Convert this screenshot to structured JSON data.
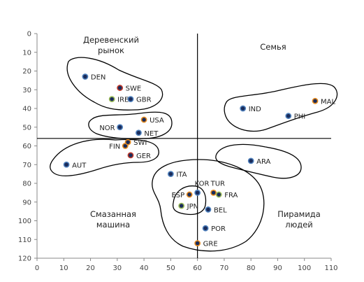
{
  "chart_data": {
    "type": "scatter",
    "title": "",
    "xlabel": "",
    "ylabel": "",
    "xlim": [
      0,
      110
    ],
    "ylim": [
      0,
      120
    ],
    "y_inverted": true,
    "x_ticks": [
      0,
      10,
      20,
      30,
      40,
      50,
      60,
      70,
      80,
      90,
      100,
      110
    ],
    "y_ticks": [
      0,
      10,
      20,
      30,
      40,
      50,
      60,
      70,
      80,
      90,
      100,
      110,
      120
    ],
    "grid": false,
    "reference_lines": {
      "x": 60,
      "y": 56
    },
    "quadrant_labels": {
      "top_left": [
        "Деревенский",
        "рынок"
      ],
      "top_right": [
        "Семья"
      ],
      "bottom_left": [
        "Смазанная",
        "машина"
      ],
      "bottom_right": [
        "Пирамида",
        "людей"
      ]
    },
    "colors": {
      "dot_fill": "#1a2c5b",
      "dot_rim_orange": "#e58a1f",
      "dot_rim_red": "#c0392b",
      "dot_rim_green": "#9bbb59",
      "dot_rim_blue": "#4f81bd",
      "axis": "#888888",
      "cluster_outline": "#000000"
    },
    "points": [
      {
        "label": "DEN",
        "x": 18,
        "y": 23,
        "rim": "blue"
      },
      {
        "label": "SWE",
        "x": 31,
        "y": 29,
        "rim": "red"
      },
      {
        "label": "IRE",
        "x": 28,
        "y": 35,
        "rim": "green"
      },
      {
        "label": "GBR",
        "x": 35,
        "y": 35,
        "rim": "blue"
      },
      {
        "label": "NOR",
        "x": 31,
        "y": 50,
        "rim": "blue"
      },
      {
        "label": "USA",
        "x": 40,
        "y": 46,
        "rim": "orange"
      },
      {
        "label": "NET",
        "x": 38,
        "y": 53,
        "rim": "blue"
      },
      {
        "label": "FIN",
        "x": 33,
        "y": 60,
        "rim": "orange"
      },
      {
        "label": "SWI",
        "x": 34,
        "y": 58,
        "rim": "orange"
      },
      {
        "label": "GER",
        "x": 35,
        "y": 65,
        "rim": "red"
      },
      {
        "label": "AUT",
        "x": 11,
        "y": 70,
        "rim": "blue"
      },
      {
        "label": "MAL",
        "x": 104,
        "y": 36,
        "rim": "orange"
      },
      {
        "label": "IND",
        "x": 77,
        "y": 40,
        "rim": "blue"
      },
      {
        "label": "PHI",
        "x": 94,
        "y": 44,
        "rim": "blue"
      },
      {
        "label": "ARA",
        "x": 80,
        "y": 68,
        "rim": "blue"
      },
      {
        "label": "ITA",
        "x": 50,
        "y": 75,
        "rim": "blue"
      },
      {
        "label": "KOR",
        "x": 60,
        "y": 85,
        "rim": "blue"
      },
      {
        "label": "TUR",
        "x": 66,
        "y": 85,
        "rim": "orange"
      },
      {
        "label": "FRA",
        "x": 68,
        "y": 86,
        "rim": "green"
      },
      {
        "label": "ESP",
        "x": 57,
        "y": 86,
        "rim": "orange"
      },
      {
        "label": "JPN",
        "x": 54,
        "y": 92,
        "rim": "green"
      },
      {
        "label": "BEL",
        "x": 64,
        "y": 94,
        "rim": "blue"
      },
      {
        "label": "POR",
        "x": 63,
        "y": 104,
        "rim": "blue"
      },
      {
        "label": "GRE",
        "x": 60,
        "y": 112,
        "rim": "orange"
      }
    ]
  }
}
